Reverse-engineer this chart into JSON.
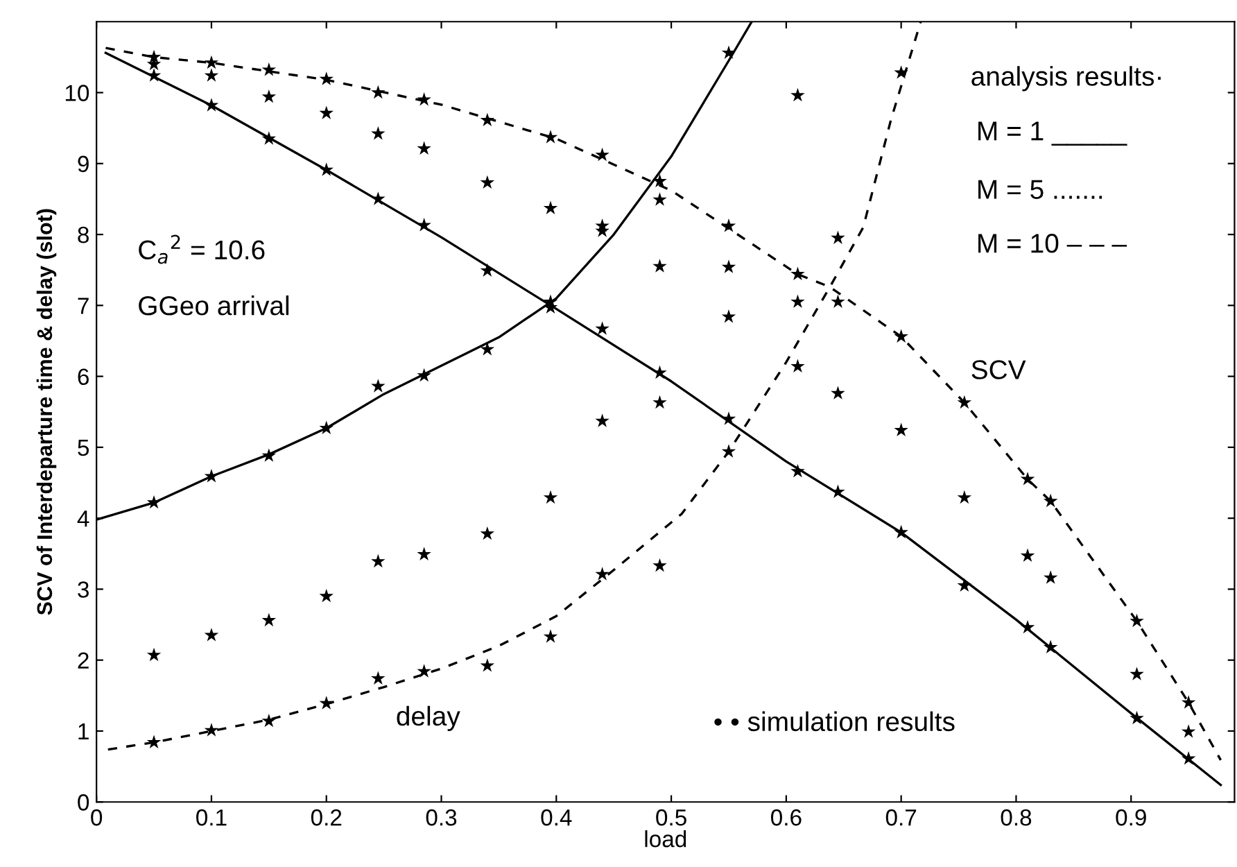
{
  "chart_data": {
    "type": "line",
    "xlabel": "load",
    "ylabel": "SCV of Interdeparture time & delay (slot)",
    "xlim": [
      0,
      0.99
    ],
    "ylim": [
      0,
      11
    ],
    "xticks": [
      0,
      0.1,
      0.2,
      0.3,
      0.4,
      0.5,
      0.6,
      0.7,
      0.8,
      0.9
    ],
    "yticks": [
      0,
      1,
      2,
      3,
      4,
      5,
      6,
      7,
      8,
      9,
      10
    ],
    "grid": false,
    "legend": false,
    "annotations": [
      "C$_{a}$$^{2}$ = 10.6",
      "GGeo arrival",
      "SCV",
      "delay",
      "• • simulation results",
      "analysis results·",
      "M = 1 _____",
      "M = 5 .......",
      "M = 10 – – –"
    ],
    "series": [
      {
        "color": "#000000",
        "line_style": "solid",
        "marker": "none",
        "x": [
          0.008,
          0.1,
          0.2,
          0.3,
          0.4,
          0.5,
          0.6,
          0.7,
          0.8,
          0.9,
          0.978
        ],
        "values": [
          10.56,
          9.82,
          8.91,
          7.96,
          6.95,
          5.93,
          4.8,
          3.8,
          2.57,
          1.25,
          0.24
        ]
      },
      {
        "color": "#000000",
        "line_style": "dashed",
        "marker": "none",
        "x": [
          0.008,
          0.05,
          0.1,
          0.2,
          0.3,
          0.4,
          0.5,
          0.61,
          0.638,
          0.7,
          0.755,
          0.81,
          0.83,
          0.905,
          0.95,
          0.978
        ],
        "values": [
          10.63,
          10.5,
          10.42,
          10.18,
          9.83,
          9.35,
          8.62,
          7.44,
          7.26,
          6.56,
          5.63,
          4.55,
          4.24,
          2.55,
          1.4,
          0.59
        ]
      },
      {
        "color": "#000000",
        "line_style": "solid",
        "marker": "none",
        "x": [
          0,
          0.05,
          0.1,
          0.15,
          0.2,
          0.25,
          0.3,
          0.35,
          0.4,
          0.45,
          0.5,
          0.55,
          0.57
        ],
        "values": [
          3.98,
          4.22,
          4.59,
          4.9,
          5.27,
          5.75,
          6.15,
          6.55,
          7.1,
          8.0,
          9.1,
          10.45,
          11.0
        ]
      },
      {
        "color": "#000000",
        "line_style": "dashed",
        "marker": "none",
        "x": [
          0.01,
          0.05,
          0.1,
          0.15,
          0.2,
          0.25,
          0.3,
          0.35,
          0.4,
          0.45,
          0.509,
          0.55,
          0.6,
          0.638,
          0.667,
          0.691,
          0.717
        ],
        "values": [
          0.74,
          0.84,
          1.0,
          1.16,
          1.38,
          1.62,
          1.88,
          2.2,
          2.62,
          3.27,
          4.06,
          4.94,
          6.2,
          7.26,
          8.1,
          9.61,
          11.0
        ]
      },
      {
        "type": "scatter",
        "color": "#000000",
        "marker": "star",
        "x": [
          0.05,
          0.05,
          0.05,
          0.05,
          0.05,
          0.05,
          0.1,
          0.1,
          0.1,
          0.1,
          0.1,
          0.1,
          0.15,
          0.15,
          0.15,
          0.15,
          0.15,
          0.15,
          0.2,
          0.2,
          0.2,
          0.2,
          0.2,
          0.2,
          0.245,
          0.245,
          0.245,
          0.245,
          0.245,
          0.245,
          0.285,
          0.285,
          0.285,
          0.285,
          0.285,
          0.285,
          0.34,
          0.34,
          0.34,
          0.34,
          0.34,
          0.34,
          0.395,
          0.395,
          0.395,
          0.395,
          0.395,
          0.395,
          0.44,
          0.44,
          0.44,
          0.44,
          0.44,
          0.44,
          0.49,
          0.49,
          0.49,
          0.49,
          0.49,
          0.49,
          0.55,
          0.55,
          0.55,
          0.55,
          0.55,
          0.55,
          0.61,
          0.61,
          0.61,
          0.61,
          0.61,
          0.645,
          0.645,
          0.645,
          0.645,
          0.7,
          0.7,
          0.7,
          0.7,
          0.755,
          0.755,
          0.755,
          0.81,
          0.81,
          0.81,
          0.83,
          0.83,
          0.83,
          0.905,
          0.905,
          0.905,
          0.95,
          0.95,
          0.95
        ],
        "values": [
          10.5,
          10.4,
          10.24,
          4.22,
          2.07,
          0.84,
          10.42,
          10.24,
          9.82,
          4.59,
          2.35,
          1.01,
          10.32,
          9.94,
          9.35,
          4.88,
          2.56,
          1.14,
          10.19,
          9.71,
          8.91,
          5.27,
          2.9,
          1.39,
          10.0,
          9.42,
          8.5,
          5.86,
          3.39,
          1.74,
          9.9,
          9.21,
          8.13,
          6.01,
          3.49,
          1.84,
          9.61,
          8.73,
          7.49,
          6.38,
          3.78,
          1.92,
          9.37,
          8.37,
          7.05,
          6.97,
          4.29,
          2.33,
          9.12,
          8.12,
          8.05,
          6.67,
          5.37,
          3.21,
          8.75,
          8.49,
          7.55,
          6.05,
          5.63,
          3.33,
          10.56,
          8.12,
          7.54,
          6.84,
          5.4,
          4.94,
          9.96,
          7.44,
          7.05,
          6.14,
          4.66,
          7.95,
          7.05,
          5.76,
          4.37,
          10.28,
          6.56,
          5.24,
          3.8,
          5.63,
          4.29,
          3.05,
          4.55,
          3.47,
          2.46,
          4.24,
          3.16,
          2.18,
          2.55,
          1.8,
          1.18,
          1.4,
          0.99,
          0.61
        ]
      }
    ]
  }
}
